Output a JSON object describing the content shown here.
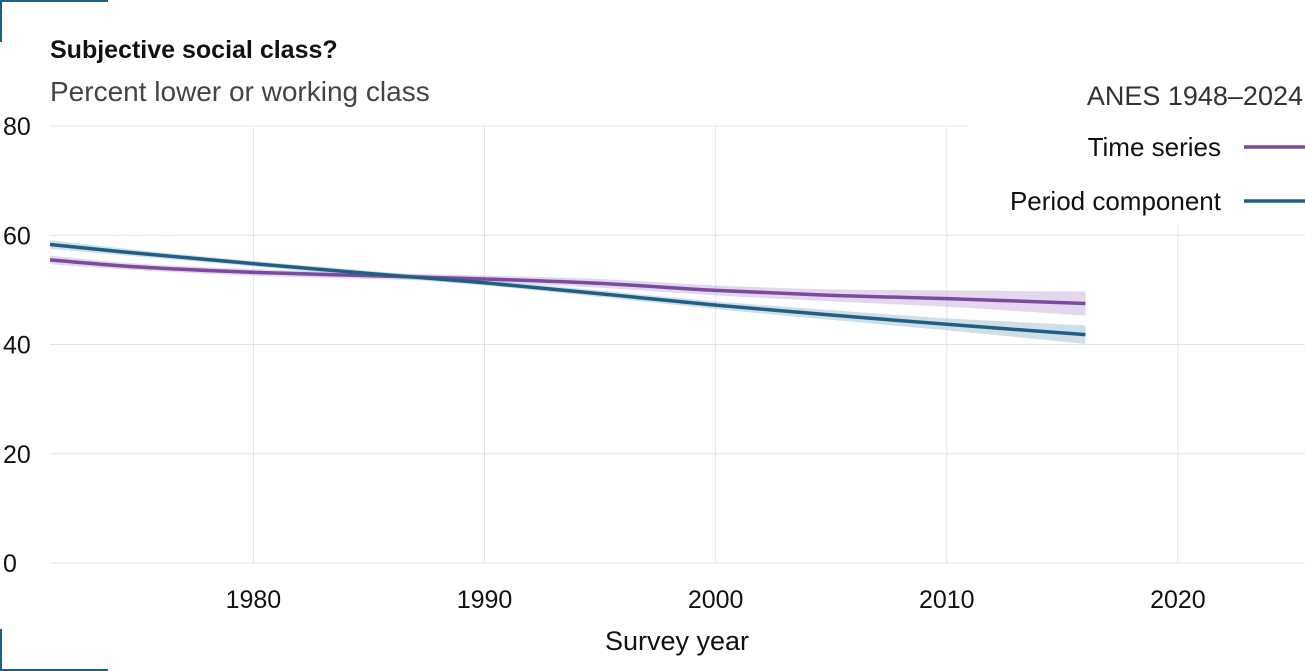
{
  "chart_data": {
    "type": "line",
    "title": "Subjective social class?",
    "subtitle": "Percent lower or working class",
    "xlabel": "Survey year",
    "ylabel": "",
    "xlim": [
      1971.2,
      2025.5
    ],
    "ylim": [
      0,
      80
    ],
    "xticks": [
      1980,
      1990,
      2000,
      2010,
      2020
    ],
    "yticks": [
      0,
      20,
      40,
      60,
      80
    ],
    "grid": true,
    "legend": {
      "title": "ANES 1948–2024",
      "position": "top-right"
    },
    "series": [
      {
        "name": "Time series",
        "color": "#7b4a9e",
        "band_color": "#cbb7dc",
        "x": [
          1971.2,
          1975,
          1980,
          1985,
          1990,
          1995,
          2000,
          2005,
          2010,
          2016
        ],
        "y": [
          55.5,
          54.2,
          53.2,
          52.6,
          52.0,
          51.2,
          49.9,
          49.0,
          48.4,
          47.5
        ],
        "lower": [
          54.7,
          53.6,
          52.6,
          52.0,
          51.4,
          50.4,
          49.0,
          47.9,
          46.9,
          45.3
        ],
        "upper": [
          56.3,
          54.8,
          53.8,
          53.2,
          52.6,
          52.0,
          50.8,
          50.1,
          49.9,
          49.7
        ]
      },
      {
        "name": "Period component",
        "color": "#1f5f85",
        "band_color": "#a8c3d4",
        "x": [
          1971.2,
          1975,
          1980,
          1985,
          1990,
          1995,
          2000,
          2005,
          2010,
          2016
        ],
        "y": [
          58.3,
          56.7,
          54.8,
          53.0,
          51.3,
          49.3,
          47.2,
          45.4,
          43.7,
          41.8
        ],
        "lower": [
          57.5,
          56.1,
          54.3,
          52.5,
          50.8,
          48.7,
          46.5,
          44.5,
          42.6,
          40.1
        ],
        "upper": [
          59.1,
          57.3,
          55.3,
          53.5,
          51.8,
          49.9,
          47.9,
          46.3,
          44.8,
          43.5
        ]
      }
    ]
  }
}
